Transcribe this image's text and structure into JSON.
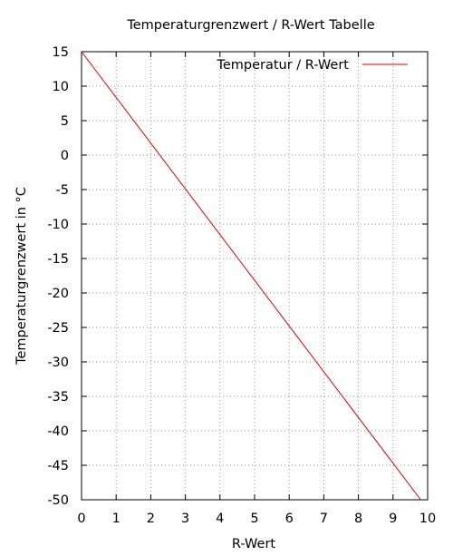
{
  "chart_data": {
    "type": "line",
    "title": "Temperaturgrenzwert / R-Wert Tabelle",
    "xlabel": "R-Wert",
    "ylabel": "Temperaturgrenzwert in °C",
    "xlim": [
      0,
      10
    ],
    "ylim": [
      -50,
      15
    ],
    "xticks": [
      0,
      1,
      2,
      3,
      4,
      5,
      6,
      7,
      8,
      9,
      10
    ],
    "yticks": [
      15,
      10,
      5,
      0,
      -5,
      -10,
      -15,
      -20,
      -25,
      -30,
      -35,
      -40,
      -45,
      -50
    ],
    "grid": true,
    "legend_position": "top-right",
    "series": [
      {
        "name": "Temperatur / R-Wert",
        "color": "#e00000",
        "x": [
          0,
          9.8
        ],
        "y": [
          15,
          -50
        ]
      }
    ]
  }
}
